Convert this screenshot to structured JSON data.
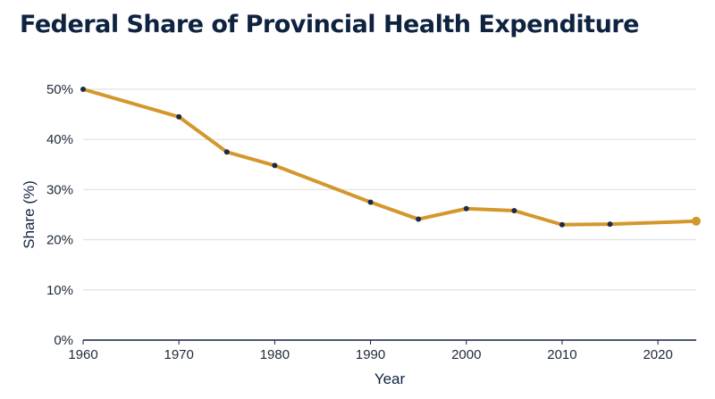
{
  "chart_data": {
    "type": "line",
    "title": "Federal Share of Provincial Health Expenditure",
    "xlabel": "Year",
    "ylabel": "Share (%)",
    "xlim": [
      1960,
      2024
    ],
    "ylim": [
      0,
      50
    ],
    "x_ticks": [
      1960,
      1970,
      1980,
      1990,
      2000,
      2010,
      2020
    ],
    "y_ticks": [
      0,
      10,
      20,
      30,
      40,
      50
    ],
    "y_tick_labels": [
      "0%",
      "10%",
      "20%",
      "30%",
      "40%",
      "50%"
    ],
    "grid": "horizontal",
    "series": [
      {
        "color": "#d4972c",
        "marker_color": "#1f2a44",
        "x": [
          1960,
          1970,
          1975,
          1980,
          1990,
          1995,
          2000,
          2005,
          2010,
          2015,
          2024
        ],
        "y": [
          50,
          44.5,
          37.5,
          34.8,
          27.5,
          24.1,
          26.2,
          25.8,
          23.0,
          23.1,
          23.7
        ]
      }
    ]
  }
}
